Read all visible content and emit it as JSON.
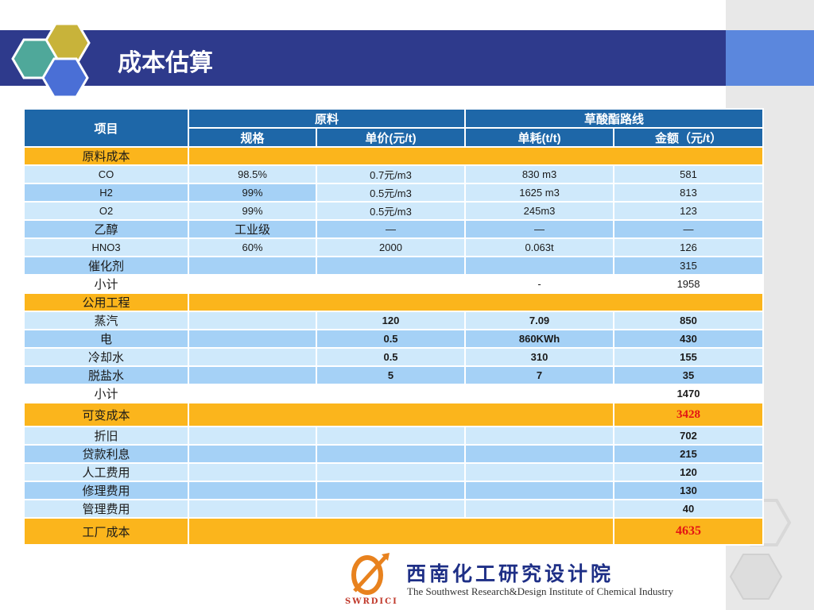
{
  "title": "成本估算",
  "colors": {
    "header": "#2e3a8c",
    "accent": "#5b87dd",
    "section": "#fbb51c",
    "table_head": "#1e67a8",
    "light_row": "#cfe9fb",
    "mid_row": "#a5d1f6",
    "highlight": "#e31414"
  },
  "table": {
    "header": {
      "item": "项目",
      "group1": "原料",
      "group2": "草酸酯路线",
      "spec": "规格",
      "unit_price": "单价(元/t)",
      "consumption": "单耗(t/t)",
      "amount": "金额（元/t）"
    },
    "raw_material": {
      "label": "原料成本",
      "rows": [
        {
          "item": "CO",
          "spec": "98.5%",
          "price": "0.7元/m3",
          "consumption": "830 m3",
          "amount": "581"
        },
        {
          "item": "H2",
          "spec": "99%",
          "price": "0.5元/m3",
          "consumption": "1625 m3",
          "amount": "813"
        },
        {
          "item": "O2",
          "spec": "99%",
          "price": "0.5元/m3",
          "consumption": "245m3",
          "amount": "123"
        },
        {
          "item": "乙醇",
          "spec": "工业级",
          "price": "—",
          "consumption": "—",
          "amount": "—"
        },
        {
          "item": "HNO3",
          "spec": "60%",
          "price": "2000",
          "consumption": "0.063t",
          "amount": "126"
        },
        {
          "item": "催化剂",
          "spec": "",
          "price": "",
          "consumption": "",
          "amount": "315"
        }
      ],
      "subtotal": {
        "label": "小计",
        "consumption": "-",
        "amount": "1958"
      }
    },
    "utilities": {
      "label": "公用工程",
      "rows": [
        {
          "item": "蒸汽",
          "price": "120",
          "consumption": "7.09",
          "amount": "850"
        },
        {
          "item": "电",
          "price": "0.5",
          "consumption": "860KWh",
          "amount": "430"
        },
        {
          "item": "冷却水",
          "price": "0.5",
          "consumption": "310",
          "amount": "155"
        },
        {
          "item": "脱盐水",
          "price": "5",
          "consumption": "7",
          "amount": "35"
        }
      ],
      "subtotal": {
        "label": "小计",
        "amount": "1470"
      }
    },
    "variable_cost": {
      "label": "可变成本",
      "amount": "3428"
    },
    "fixed": [
      {
        "item": "折旧",
        "amount": "702"
      },
      {
        "item": "贷款利息",
        "amount": "215"
      },
      {
        "item": "人工费用",
        "amount": "120"
      },
      {
        "item": "修理费用",
        "amount": "130"
      },
      {
        "item": "管理费用",
        "amount": "40"
      }
    ],
    "factory_cost": {
      "label": "工厂成本",
      "amount": "4635"
    }
  },
  "footer": {
    "name_cn": "西南化工研究设计院",
    "name_en": "The Southwest Research&Design Institute of Chemical Industry",
    "abbr": "SWRDICI"
  }
}
